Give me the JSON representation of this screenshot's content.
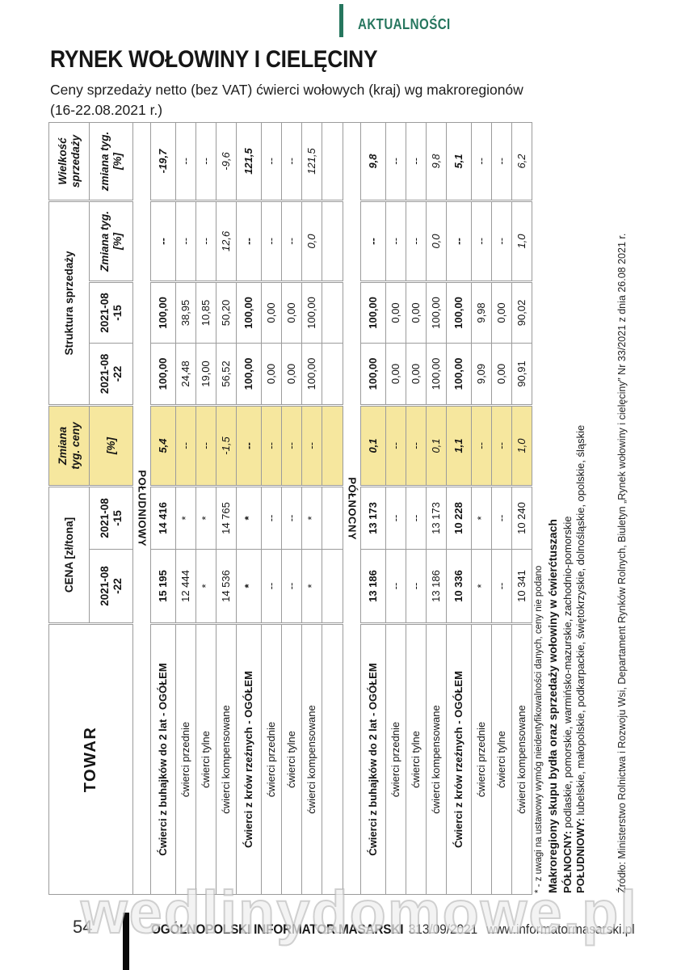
{
  "colors": {
    "accent_teal": "#26765e",
    "highlight_yellow": "#f6e79e",
    "border_gray": "#9b9b9b"
  },
  "header": {
    "section_label": "AKTUALNOŚCI",
    "title": "RYNEK WOŁOWINY I CIELĘCINY",
    "subtitle_line1": "Ceny sprzedaży netto (bez VAT) ćwierci wołowych (kraj) wg makroregionów",
    "subtitle_line2": "(16-22.08.2021 r.)"
  },
  "table": {
    "headers": {
      "towar": "TOWAR",
      "cena_group": "CENA [zł/tona]",
      "zmiana_ceny_line1": "Zmiana",
      "zmiana_ceny_line2": "tyg. ceny",
      "zmiana_ceny_unit": "[%]",
      "struktura_group": "Struktura sprzedaży",
      "date_22_line1": "2021-08",
      "date_22_line2": "-22",
      "date_15_line1": "2021-08",
      "date_15_line2": "-15",
      "struktura_zmiana_line1": "Zmiana tyg.",
      "struktura_zmiana_unit": "[%]",
      "wielkosc_line1": "Wielkość",
      "wielkosc_line2": "sprzedaży",
      "wielkosc_sub_line1": "zmiana tyg.",
      "wielkosc_sub_unit": "[%]"
    },
    "sections": [
      {
        "name": "POŁUDNIOWY",
        "spacer_after": true,
        "rows": [
          {
            "label": "Ćwierci z buhajków do 2 lat - OGÓŁEM",
            "emphasis": true,
            "cena_22": "15 195",
            "cena_15": "14 416",
            "zmiana_ceny": "5,4",
            "struktura_22": "100,00",
            "struktura_15": "100,00",
            "struktura_zmiana": "--",
            "wielkosc_zmiana": "-19,7"
          },
          {
            "label": "ćwierci przednie",
            "emphasis": false,
            "cena_22": "12 444",
            "cena_15": "*",
            "zmiana_ceny": "--",
            "struktura_22": "24,48",
            "struktura_15": "38,95",
            "struktura_zmiana": "--",
            "wielkosc_zmiana": "--"
          },
          {
            "label": "ćwierci tylne",
            "emphasis": false,
            "cena_22": "*",
            "cena_15": "*",
            "zmiana_ceny": "--",
            "struktura_22": "19,00",
            "struktura_15": "10,85",
            "struktura_zmiana": "--",
            "wielkosc_zmiana": "--"
          },
          {
            "label": "ćwierci kompensowane",
            "emphasis": false,
            "cena_22": "14 536",
            "cena_15": "14 765",
            "zmiana_ceny": "-1,5",
            "struktura_22": "56,52",
            "struktura_15": "50,20",
            "struktura_zmiana": "12,6",
            "wielkosc_zmiana": "-9,6"
          },
          {
            "label": "Ćwierci z krów rzeźnych - OGÓŁEM",
            "emphasis": true,
            "cena_22": "*",
            "cena_15": "*",
            "zmiana_ceny": "--",
            "struktura_22": "100,00",
            "struktura_15": "100,00",
            "struktura_zmiana": "--",
            "wielkosc_zmiana": "121,5"
          },
          {
            "label": "ćwierci przednie",
            "emphasis": false,
            "cena_22": "--",
            "cena_15": "--",
            "zmiana_ceny": "--",
            "struktura_22": "0,00",
            "struktura_15": "0,00",
            "struktura_zmiana": "--",
            "wielkosc_zmiana": "--"
          },
          {
            "label": "ćwierci tylne",
            "emphasis": false,
            "cena_22": "--",
            "cena_15": "--",
            "zmiana_ceny": "--",
            "struktura_22": "0,00",
            "struktura_15": "0,00",
            "struktura_zmiana": "--",
            "wielkosc_zmiana": "--"
          },
          {
            "label": "ćwierci kompensowane",
            "emphasis": false,
            "cena_22": "*",
            "cena_15": "*",
            "zmiana_ceny": "--",
            "struktura_22": "100,00",
            "struktura_15": "100,00",
            "struktura_zmiana": "0,0",
            "wielkosc_zmiana": "121,5"
          }
        ]
      },
      {
        "name": "PÓŁNOCNY",
        "spacer_after": false,
        "rows": [
          {
            "label": "Ćwierci z buhajków do 2 lat - OGÓŁEM",
            "emphasis": true,
            "cena_22": "13 186",
            "cena_15": "13 173",
            "zmiana_ceny": "0,1",
            "struktura_22": "100,00",
            "struktura_15": "100,00",
            "struktura_zmiana": "--",
            "wielkosc_zmiana": "9,8"
          },
          {
            "label": "ćwierci przednie",
            "emphasis": false,
            "cena_22": "--",
            "cena_15": "--",
            "zmiana_ceny": "--",
            "struktura_22": "0,00",
            "struktura_15": "0,00",
            "struktura_zmiana": "--",
            "wielkosc_zmiana": "--"
          },
          {
            "label": "ćwierci tylne",
            "emphasis": false,
            "cena_22": "--",
            "cena_15": "--",
            "zmiana_ceny": "--",
            "struktura_22": "0,00",
            "struktura_15": "0,00",
            "struktura_zmiana": "--",
            "wielkosc_zmiana": "--"
          },
          {
            "label": "ćwierci kompensowane",
            "emphasis": false,
            "cena_22": "13 186",
            "cena_15": "13 173",
            "zmiana_ceny": "0,1",
            "struktura_22": "100,00",
            "struktura_15": "100,00",
            "struktura_zmiana": "0,0",
            "wielkosc_zmiana": "9,8"
          },
          {
            "label": "Ćwierci z krów rzeźnych - OGÓŁEM",
            "emphasis": true,
            "cena_22": "10 336",
            "cena_15": "10 228",
            "zmiana_ceny": "1,1",
            "struktura_22": "100,00",
            "struktura_15": "100,00",
            "struktura_zmiana": "--",
            "wielkosc_zmiana": "5,1"
          },
          {
            "label": "ćwierci przednie",
            "emphasis": false,
            "cena_22": "*",
            "cena_15": "*",
            "zmiana_ceny": "--",
            "struktura_22": "9,09",
            "struktura_15": "9,98",
            "struktura_zmiana": "--",
            "wielkosc_zmiana": "--"
          },
          {
            "label": "ćwierci tylne",
            "emphasis": false,
            "cena_22": "--",
            "cena_15": "--",
            "zmiana_ceny": "--",
            "struktura_22": "0,00",
            "struktura_15": "0,00",
            "struktura_zmiana": "--",
            "wielkosc_zmiana": "--"
          },
          {
            "label": "ćwierci kompensowane",
            "emphasis": false,
            "cena_22": "10 341",
            "cena_15": "10 240",
            "zmiana_ceny": "1,0",
            "struktura_22": "90,91",
            "struktura_15": "90,02",
            "struktura_zmiana": "1,0",
            "wielkosc_zmiana": "6,2"
          }
        ]
      }
    ]
  },
  "notes": {
    "asterisk_note": "* - z uwagi na ustawowy wymóg nieidentyfikowalności danych, ceny nie podano",
    "makroregiony_title": "Makroregiony skupu bydła oraz sprzedaży wołowiny w ćwierćtuszach",
    "polnocny_label": "PÓŁNOCNY:",
    "polnocny_regions": " podlaskie, pomorskie, warmińsko-mazurskie, zachodnio-pomorskie",
    "poludniowy_label": "POŁUDNIOWY:",
    "poludniowy_regions": " lubelskie, małopolskie, podkarpackie, świętokrzyskie, dolnośląskie, opolskie, śląskie"
  },
  "source": {
    "text": "Źródło: Ministerstwo Rolnictwa i Rozwoju Wsi, Departament Rynków Rolnych, Biuletyn „Rynek wołowiny i cielęciny” Nr 33/2021 z dnia 26.08 2021 r."
  },
  "watermark": {
    "text": "wedlinydomowe.pl"
  },
  "footer": {
    "page_number": "54",
    "magazine": "OGÓLNOPOLSKI INFORMATOR MASARSKI",
    "issue": "313/09/2021",
    "website": "www.informatormasarski.pl"
  }
}
